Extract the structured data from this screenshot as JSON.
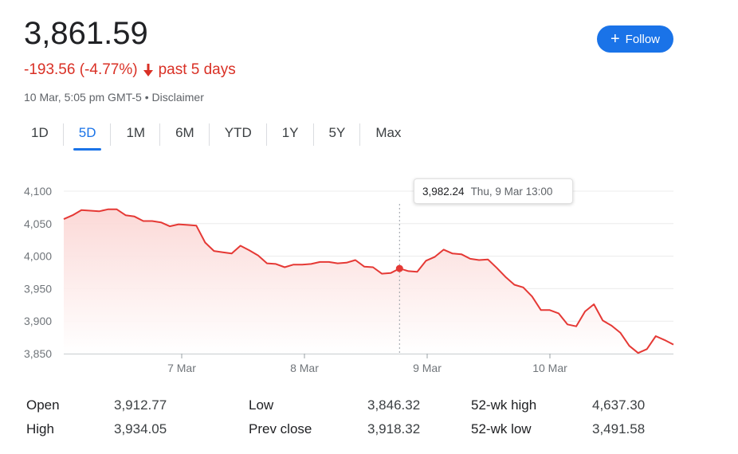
{
  "header": {
    "price": "3,861.59",
    "change": "-193.56 (-4.77%)",
    "period": "past 5 days",
    "meta": "10 Mar, 5:05 pm GMT-5 • Disclaimer",
    "follow_label": "Follow"
  },
  "tabs": [
    {
      "label": "1D"
    },
    {
      "label": "5D"
    },
    {
      "label": "1M"
    },
    {
      "label": "6M"
    },
    {
      "label": "YTD"
    },
    {
      "label": "1Y"
    },
    {
      "label": "5Y"
    },
    {
      "label": "Max"
    }
  ],
  "active_tab": "5D",
  "colors": {
    "line": "#e53935",
    "fill_top": "#fbd7d5",
    "accent": "#1a73e8",
    "negative": "#d93025",
    "grid": "#ececec"
  },
  "tooltip": {
    "value": "3,982.24",
    "time": "Thu, 9 Mar 13:00"
  },
  "chart_data": {
    "type": "area",
    "y_ticks": [
      "4,100",
      "4,050",
      "4,000",
      "3,950",
      "3,900",
      "3,850"
    ],
    "ylim": [
      3850,
      4100
    ],
    "x_ticks": [
      "7 Mar",
      "8 Mar",
      "9 Mar",
      "10 Mar"
    ],
    "grid": true,
    "hover_index": 38,
    "series": [
      {
        "values": [
          4057,
          4063,
          4071,
          4070,
          4069,
          4072,
          4072,
          4063,
          4061,
          4054,
          4054,
          4052,
          4046,
          4049,
          4048,
          4047,
          4021,
          4008,
          4006,
          4004,
          4016,
          4009,
          4001,
          3989,
          3988,
          3983,
          3987,
          3987,
          3988,
          3991,
          3991,
          3989,
          3990,
          3994,
          3984,
          3983,
          3973,
          3974,
          3981,
          3977,
          3976,
          3993,
          3999,
          4010,
          4004,
          4003,
          3996,
          3994,
          3995,
          3982,
          3968,
          3956,
          3952,
          3938,
          3917,
          3917,
          3912,
          3895,
          3892,
          3915,
          3926,
          3901,
          3893,
          3882,
          3862,
          3851,
          3857,
          3877,
          3871,
          3864
        ]
      }
    ]
  },
  "stats": [
    [
      {
        "label": "Open",
        "value": "3,912.77"
      },
      {
        "label": "Low",
        "value": "3,846.32"
      },
      {
        "label": "52-wk high",
        "value": "4,637.30"
      }
    ],
    [
      {
        "label": "High",
        "value": "3,934.05"
      },
      {
        "label": "Prev close",
        "value": "3,918.32"
      },
      {
        "label": "52-wk low",
        "value": "3,491.58"
      }
    ]
  ]
}
